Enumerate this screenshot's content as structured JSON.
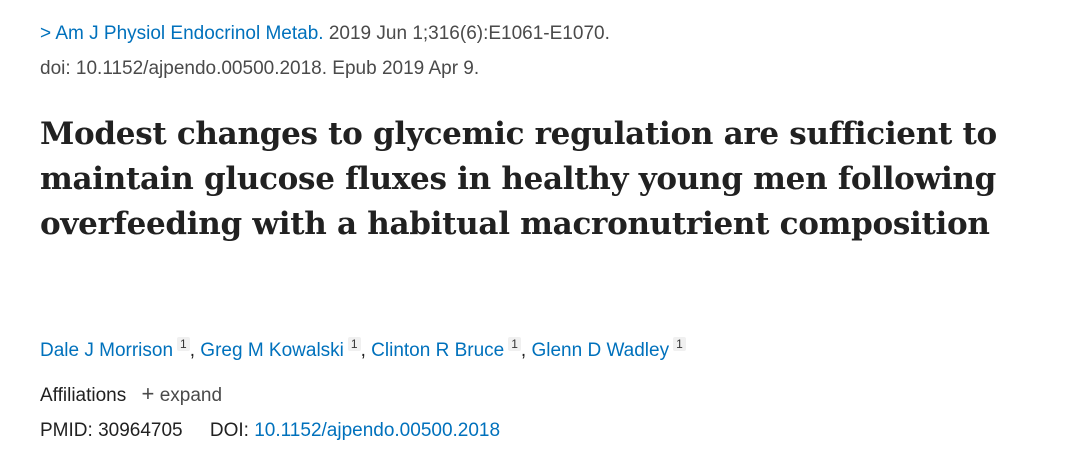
{
  "citation": {
    "journal": "Am J Physiol Endocrinol Metab.",
    "details": "2019 Jun 1;316(6):E1061-E1070.",
    "doi_line": "doi: 10.1152/ajpendo.00500.2018. Epub 2019 Apr 9."
  },
  "title": "Modest changes to glycemic regulation are sufficient to maintain glucose fluxes in healthy young men following overfeeding with a habitual macronutrient composition",
  "authors": [
    {
      "name": "Dale J Morrison",
      "aff": "1"
    },
    {
      "name": "Greg M Kowalski",
      "aff": "1"
    },
    {
      "name": "Clinton R Bruce",
      "aff": "1"
    },
    {
      "name": "Glenn D Wadley",
      "aff": "1"
    }
  ],
  "affiliations": {
    "label": "Affiliations",
    "expand_icon": "+",
    "expand_label": "expand"
  },
  "ids": {
    "pmid_label": "PMID:",
    "pmid": "30964705",
    "doi_label": "DOI:",
    "doi": "10.1152/ajpendo.00500.2018"
  },
  "colors": {
    "link": "#0071bc",
    "text": "#212121",
    "muted": "#4a4a4a"
  }
}
